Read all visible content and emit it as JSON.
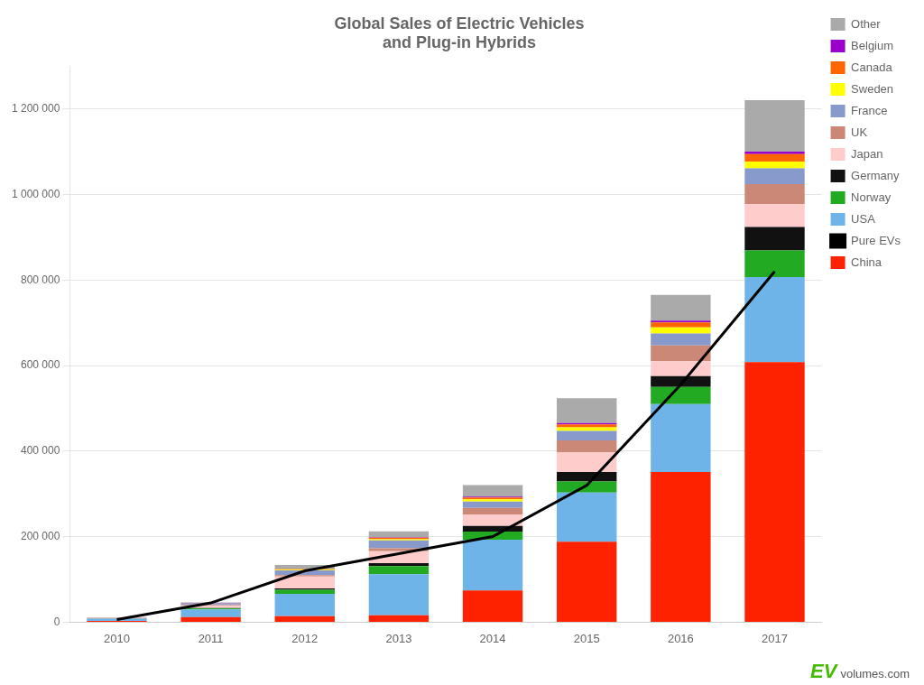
{
  "chart_data": {
    "type": "bar",
    "title": "Global Sales of Electric Vehicles\nand Plug-in Hybrids",
    "categories": [
      2010,
      2011,
      2012,
      2013,
      2014,
      2015,
      2016,
      2017
    ],
    "series": [
      {
        "name": "China",
        "color": "#FF2200",
        "values": [
          3000,
          12000,
          14000,
          16000,
          74000,
          188000,
          351000,
          608000
        ]
      },
      {
        "name": "USA",
        "color": "#6EB4E8",
        "values": [
          5000,
          18000,
          52000,
          96000,
          119000,
          115000,
          159000,
          199000
        ]
      },
      {
        "name": "Norway",
        "color": "#22AA22",
        "values": [
          300,
          2500,
          10000,
          19000,
          19000,
          26000,
          40000,
          62000
        ]
      },
      {
        "name": "Germany",
        "color": "#111111",
        "values": [
          200,
          500,
          3000,
          7000,
          13000,
          22000,
          25000,
          55000
        ]
      },
      {
        "name": "Japan",
        "color": "#FFCCCC",
        "values": [
          1200,
          6000,
          28000,
          28000,
          27000,
          46000,
          35000,
          53000
        ]
      },
      {
        "name": "UK",
        "color": "#CC8877",
        "values": [
          200,
          800,
          3000,
          7000,
          15000,
          28000,
          37000,
          47000
        ]
      },
      {
        "name": "France",
        "color": "#8899CC",
        "values": [
          600,
          2500,
          11000,
          18000,
          15000,
          22000,
          28000,
          37000
        ]
      },
      {
        "name": "Sweden",
        "color": "#FFFF00",
        "values": [
          100,
          400,
          1500,
          3000,
          5000,
          8500,
          14000,
          16000
        ]
      },
      {
        "name": "Canada",
        "color": "#FF6600",
        "values": [
          200,
          500,
          1500,
          3500,
          4500,
          7000,
          12000,
          17000
        ]
      },
      {
        "name": "Belgium",
        "color": "#9900CC",
        "values": [
          100,
          300,
          500,
          1000,
          2000,
          3000,
          4000,
          6000
        ]
      },
      {
        "name": "Other",
        "color": "#AAAAAA",
        "values": [
          600,
          2500,
          9500,
          14000,
          27000,
          58000,
          60000,
          120000
        ]
      },
      {
        "name": "Pure EVs",
        "type": "line",
        "color": "#000000",
        "values": [
          6000,
          45000,
          120000,
          160000,
          200000,
          320000,
          555000,
          820000
        ]
      }
    ],
    "stacked": true,
    "ylim": [
      0,
      1300000
    ],
    "yticks": [
      0,
      {
        "value": 200000,
        "label": "200 000"
      },
      {
        "value": 400000,
        "label": "400 000"
      },
      {
        "value": 600000,
        "label": "600 000"
      },
      {
        "value": 800000,
        "label": "800 000"
      },
      {
        "value": 1000000,
        "label": "1 000 000"
      },
      {
        "value": 1200000,
        "label": "1 200 000"
      }
    ],
    "grid": true,
    "legend": "right",
    "annotations": [
      {
        "text": "EV",
        "color": "#44BB00"
      },
      {
        "text": "volumes.com",
        "color": "#555555"
      }
    ]
  }
}
